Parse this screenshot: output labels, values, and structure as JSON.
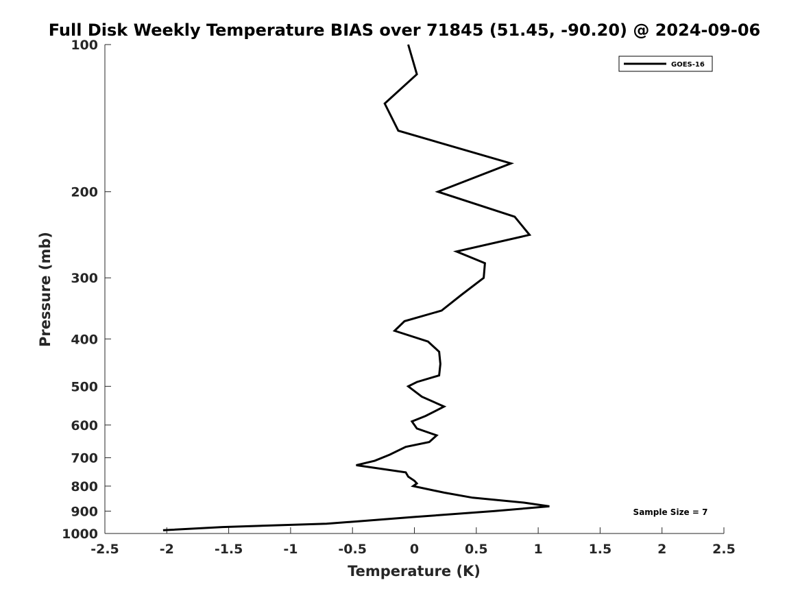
{
  "chart_data": {
    "type": "line",
    "title": "Full Disk Weekly Temperature BIAS over 71845 (51.45, -90.20) @ 2024-09-06",
    "xlabel": "Temperature (K)",
    "ylabel": "Pressure (mb)",
    "xlim": [
      -2.5,
      2.5
    ],
    "ylim": [
      100,
      1000
    ],
    "y_scale": "log",
    "y_reversed": true,
    "grid": false,
    "x_ticks": [
      -2.5,
      -2,
      -1.5,
      -1,
      -0.5,
      0,
      0.5,
      1,
      1.5,
      2,
      2.5
    ],
    "x_tick_labels": [
      "-2.5",
      "-2",
      "-1.5",
      "-1",
      "-0.5",
      "0",
      "0.5",
      "1",
      "1.5",
      "2",
      "2.5"
    ],
    "y_ticks": [
      100,
      200,
      300,
      400,
      500,
      600,
      700,
      800,
      900,
      1000
    ],
    "y_tick_labels": [
      "100",
      "200",
      "300",
      "400",
      "500",
      "600",
      "700",
      "800",
      "900",
      "1000"
    ],
    "legend": {
      "position": "top-right",
      "entries": [
        "GOES-16"
      ]
    },
    "annotation": "Sample Size = 7",
    "series": [
      {
        "name": "GOES-16",
        "color": "#000000",
        "points": [
          [
            -0.05,
            100
          ],
          [
            0.02,
            115
          ],
          [
            -0.24,
            132
          ],
          [
            -0.13,
            150
          ],
          [
            0.78,
            175
          ],
          [
            0.19,
            200
          ],
          [
            0.81,
            225
          ],
          [
            0.93,
            245
          ],
          [
            0.34,
            265
          ],
          [
            0.57,
            280
          ],
          [
            0.56,
            300
          ],
          [
            0.38,
            325
          ],
          [
            0.22,
            350
          ],
          [
            -0.08,
            368
          ],
          [
            -0.16,
            385
          ],
          [
            0.11,
            405
          ],
          [
            0.2,
            425
          ],
          [
            0.21,
            450
          ],
          [
            0.2,
            475
          ],
          [
            0.02,
            490
          ],
          [
            -0.05,
            500
          ],
          [
            0.06,
            525
          ],
          [
            0.24,
            550
          ],
          [
            0.09,
            575
          ],
          [
            -0.02,
            590
          ],
          [
            0.02,
            610
          ],
          [
            0.18,
            630
          ],
          [
            0.12,
            650
          ],
          [
            -0.07,
            665
          ],
          [
            -0.2,
            690
          ],
          [
            -0.32,
            710
          ],
          [
            -0.47,
            725
          ],
          [
            -0.07,
            750
          ],
          [
            -0.05,
            765
          ],
          [
            0.0,
            780
          ],
          [
            0.02,
            790
          ],
          [
            -0.01,
            800
          ],
          [
            0.24,
            825
          ],
          [
            0.47,
            845
          ],
          [
            0.89,
            865
          ],
          [
            1.09,
            880
          ],
          [
            0.64,
            900
          ],
          [
            0.0,
            925
          ],
          [
            -0.47,
            945
          ],
          [
            -0.71,
            955
          ],
          [
            -1.55,
            970
          ],
          [
            -2.03,
            985
          ]
        ]
      }
    ]
  }
}
